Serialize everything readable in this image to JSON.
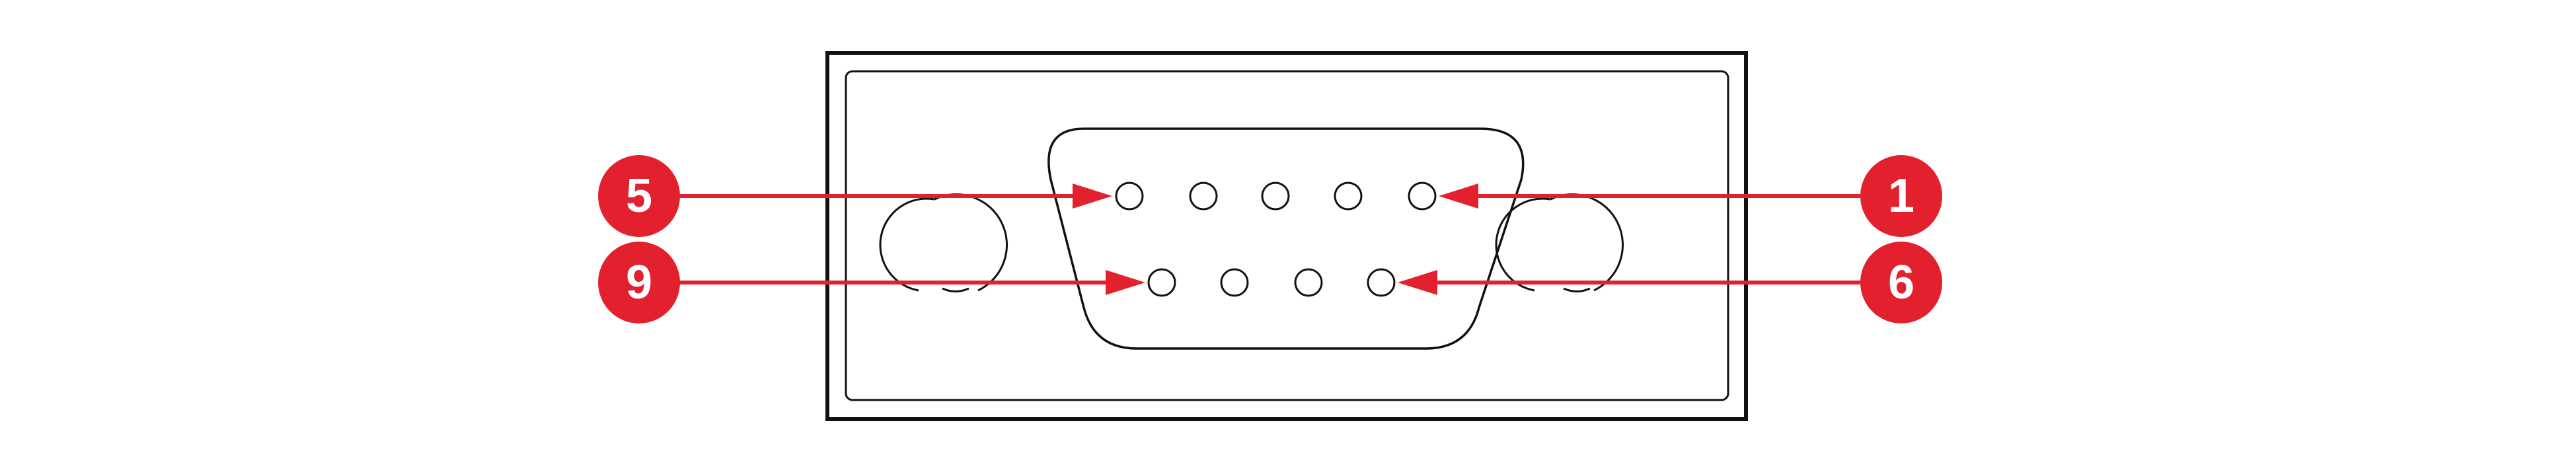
{
  "diagram": {
    "callouts": [
      {
        "id": "5",
        "label": "5"
      },
      {
        "id": "9",
        "label": "9"
      },
      {
        "id": "1",
        "label": "1"
      },
      {
        "id": "6",
        "label": "6"
      }
    ],
    "colors": {
      "callout": "#e3202d",
      "callout_text": "#ffffff",
      "outline": "#111111",
      "background": "#ffffff"
    },
    "pin_count": 9
  }
}
